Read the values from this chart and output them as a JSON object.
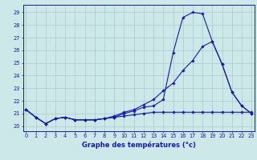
{
  "xlabel": "Graphe des températures (°c)",
  "background_color": "#cce8e8",
  "grid_color": "#aacccc",
  "line_color": "#1a1aaa",
  "yticks": [
    20,
    21,
    22,
    23,
    24,
    25,
    26,
    27,
    28,
    29
  ],
  "xticks": [
    0,
    1,
    2,
    3,
    4,
    5,
    6,
    7,
    8,
    9,
    10,
    11,
    12,
    13,
    14,
    15,
    16,
    17,
    18,
    19,
    20,
    21,
    22,
    23
  ],
  "line1_x": [
    0,
    1,
    2,
    3,
    4,
    5,
    6,
    7,
    8,
    9,
    10,
    11,
    12,
    13,
    14,
    15,
    16,
    17,
    18,
    19,
    20,
    21,
    22,
    23
  ],
  "line1_y": [
    21.3,
    20.7,
    20.2,
    20.6,
    20.7,
    20.5,
    20.5,
    20.5,
    20.6,
    20.7,
    21.0,
    21.2,
    21.5,
    21.6,
    22.1,
    25.8,
    28.6,
    29.0,
    28.9,
    26.7,
    24.9,
    22.7,
    21.6,
    21.0
  ],
  "line2_x": [
    0,
    1,
    2,
    3,
    4,
    5,
    6,
    7,
    8,
    9,
    10,
    11,
    12,
    13,
    14,
    15,
    16,
    17,
    18,
    19,
    20,
    21,
    22,
    23
  ],
  "line2_y": [
    21.3,
    20.7,
    20.2,
    20.6,
    20.7,
    20.5,
    20.5,
    20.5,
    20.6,
    20.8,
    21.1,
    21.3,
    21.7,
    22.1,
    22.8,
    23.4,
    24.4,
    25.2,
    26.3,
    26.7,
    24.9,
    22.7,
    21.6,
    21.0
  ],
  "line3_x": [
    0,
    1,
    2,
    3,
    4,
    5,
    6,
    7,
    8,
    9,
    10,
    11,
    12,
    13,
    14,
    15,
    16,
    17,
    18,
    19,
    20,
    21,
    22,
    23
  ],
  "line3_y": [
    21.3,
    20.7,
    20.2,
    20.6,
    20.7,
    20.5,
    20.5,
    20.5,
    20.6,
    20.7,
    20.8,
    20.9,
    21.0,
    21.1,
    21.1,
    21.1,
    21.1,
    21.1,
    21.1,
    21.1,
    21.1,
    21.1,
    21.1,
    21.1
  ],
  "ylim": [
    19.6,
    29.6
  ],
  "xlim": [
    -0.3,
    23.3
  ]
}
